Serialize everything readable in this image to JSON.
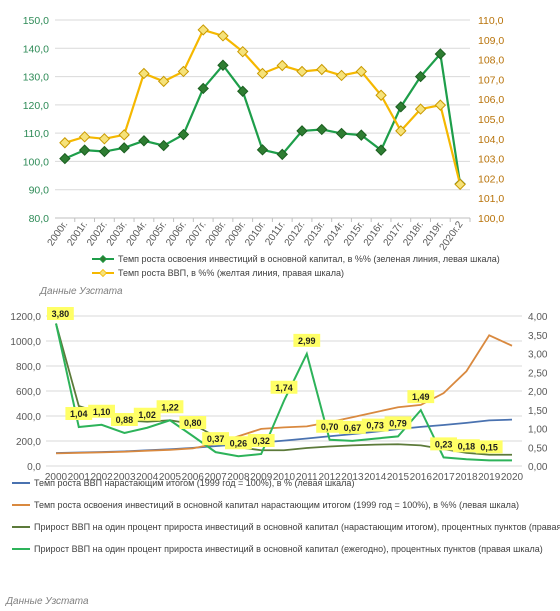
{
  "chart_data": [
    {
      "type": "line",
      "x": [
        "2000г.",
        "2001г.",
        "2002г.",
        "2003г.",
        "2004г.",
        "2005г.",
        "2006г.",
        "2007г.",
        "2008г.",
        "2009г.",
        "2010г.",
        "2011г.",
        "2012г.",
        "2013г.",
        "2014г.",
        "2015г.",
        "2016г.",
        "2017г.",
        "2018г.",
        "2019г.",
        "2020г.2"
      ],
      "y_left_ticks": [
        "80,0",
        "90,0",
        "100,0",
        "110,0",
        "120,0",
        "130,0",
        "140,0",
        "150,0"
      ],
      "y_right_ticks": [
        "100,0",
        "101,0",
        "102,0",
        "103,0",
        "104,0",
        "105,0",
        "106,0",
        "107,0",
        "108,0",
        "109,0",
        "110,0"
      ],
      "ylim_left": [
        80,
        150
      ],
      "ylim_right": [
        100,
        110
      ],
      "grid": true,
      "legend_position": "bottom",
      "series": [
        {
          "name": "Темп роста освоения инвестиций в основной капитал, в %% (зеленая линия, левая шкала)",
          "axis": "left",
          "color": "#1e9e4a",
          "marker_color": "#2e7d32",
          "values": [
            101.0,
            104.0,
            103.5,
            104.8,
            107.3,
            105.6,
            109.5,
            125.8,
            134.0,
            124.8,
            104.1,
            102.5,
            110.8,
            111.3,
            109.9,
            109.3,
            104.0,
            119.3,
            130.0,
            138.0,
            92.0
          ]
        },
        {
          "name": "Темп роста ВВП, в %% (желтая линия, правая шкала)",
          "axis": "right",
          "color": "#f5b800",
          "marker_color": "#f6e27a",
          "values": [
            103.8,
            104.1,
            104.0,
            104.2,
            107.3,
            106.9,
            107.4,
            109.5,
            109.2,
            108.4,
            107.3,
            107.7,
            107.4,
            107.5,
            107.2,
            107.4,
            106.2,
            104.4,
            105.5,
            105.7,
            101.7
          ]
        }
      ],
      "source": "Данные Узстата"
    },
    {
      "type": "line",
      "x": [
        "2000",
        "2001",
        "2002",
        "2003",
        "2004",
        "2005",
        "2006",
        "2007",
        "2008",
        "2009",
        "2010",
        "2011",
        "2012",
        "2013",
        "2014",
        "2015",
        "2016",
        "2017",
        "2018",
        "2019",
        "2020"
      ],
      "y_left_ticks": [
        "0,0",
        "200,0",
        "400,0",
        "600,0",
        "800,0",
        "1000,0",
        "1200,0"
      ],
      "y_right_ticks": [
        "0,00",
        "0,50",
        "1,00",
        "1,50",
        "2,00",
        "2,50",
        "3,00",
        "3,50",
        "4,00"
      ],
      "ylim_left": [
        0,
        1200
      ],
      "ylim_right": [
        0,
        4
      ],
      "grid": true,
      "legend_position": "bottom",
      "series": [
        {
          "name": "Темп роста ВВП нарастающим итогом (1999 год = 100%), в % (левая шкала)",
          "axis": "left",
          "color": "#4a72b0",
          "values": [
            104,
            108,
            112,
            117,
            126,
            134,
            145,
            159,
            173,
            188,
            203,
            220,
            238,
            255,
            274,
            295,
            313,
            328,
            345,
            365,
            371
          ]
        },
        {
          "name": "Темп роста освоения инвестиций в основной капитал нарастающим итогом (1999 год = 100%), в %% (левая шкала)",
          "axis": "left",
          "color": "#d9893f",
          "values": [
            101,
            105,
            109,
            114,
            122,
            129,
            141,
            178,
            238,
            297,
            309,
            317,
            351,
            390,
            430,
            470,
            489,
            583,
            758,
            1046,
            962
          ]
        },
        {
          "name": "Прирост ВВП на один процент прироста инвестиций в основной капитал (нарастающим итогом), процентных пунктов (правая шкала)",
          "axis": "right",
          "color": "#5c7a3a",
          "values": [
            3.8,
            1.6,
            1.4,
            1.22,
            1.18,
            1.22,
            1.12,
            0.78,
            0.5,
            0.42,
            0.42,
            0.48,
            0.52,
            0.55,
            0.57,
            0.58,
            0.55,
            0.45,
            0.35,
            0.3,
            0.3
          ]
        },
        {
          "name": "Прирост ВВП на один процент прироста инвестиций в основной капитал (ежегодно), процентных пунктов (правая шкала)",
          "axis": "right",
          "color": "#2db35a",
          "values": [
            3.8,
            1.04,
            1.1,
            0.88,
            1.02,
            1.22,
            0.8,
            0.37,
            0.26,
            0.32,
            1.74,
            2.99,
            0.7,
            0.67,
            0.73,
            0.79,
            1.49,
            0.23,
            0.18,
            0.15,
            0.15
          ],
          "data_labels": [
            "3,80",
            "1,04",
            "1,10",
            "0,88",
            "1,02",
            "1,22",
            "0,80",
            "0,37",
            "0,26",
            "0,32",
            "1,74",
            "2,99",
            "0,70",
            "0,67",
            "0,73",
            "0,79",
            "1,49",
            "0,23",
            "0,18",
            "0,15",
            ""
          ]
        }
      ],
      "source": "Данные Узстата"
    }
  ]
}
